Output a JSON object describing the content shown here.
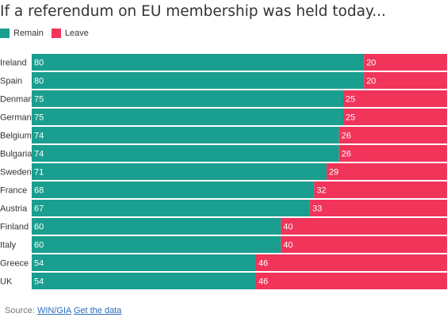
{
  "colors": {
    "remain": "#1a9e8f",
    "leave": "#f0345a",
    "value_text": "#ffffff",
    "label_text": "#333333"
  },
  "legend": {
    "remain_label": "Remain",
    "leave_label": "Leave"
  },
  "footer": {
    "source_prefix": "Source: ",
    "source_link": "WIN/GIA",
    "data_link": "Get the data"
  },
  "chart_data": {
    "type": "bar",
    "orientation": "horizontal",
    "stacked": true,
    "title": "If a referendum on EU membership was held today...",
    "xlabel": "",
    "ylabel": "",
    "xlim": [
      0,
      100
    ],
    "legend_position": "top-left",
    "grid": false,
    "categories": [
      "Ireland",
      "Spain",
      "Denmark",
      "Germany",
      "Belgium",
      "Bulgaria",
      "Sweden",
      "France",
      "Austria",
      "Finland",
      "Italy",
      "Greece",
      "UK"
    ],
    "series": [
      {
        "name": "Remain",
        "values": [
          80,
          80,
          75,
          75,
          74,
          74,
          71,
          68,
          67,
          60,
          60,
          54,
          54
        ]
      },
      {
        "name": "Leave",
        "values": [
          20,
          20,
          25,
          25,
          26,
          26,
          29,
          32,
          33,
          40,
          40,
          46,
          46
        ]
      }
    ]
  }
}
